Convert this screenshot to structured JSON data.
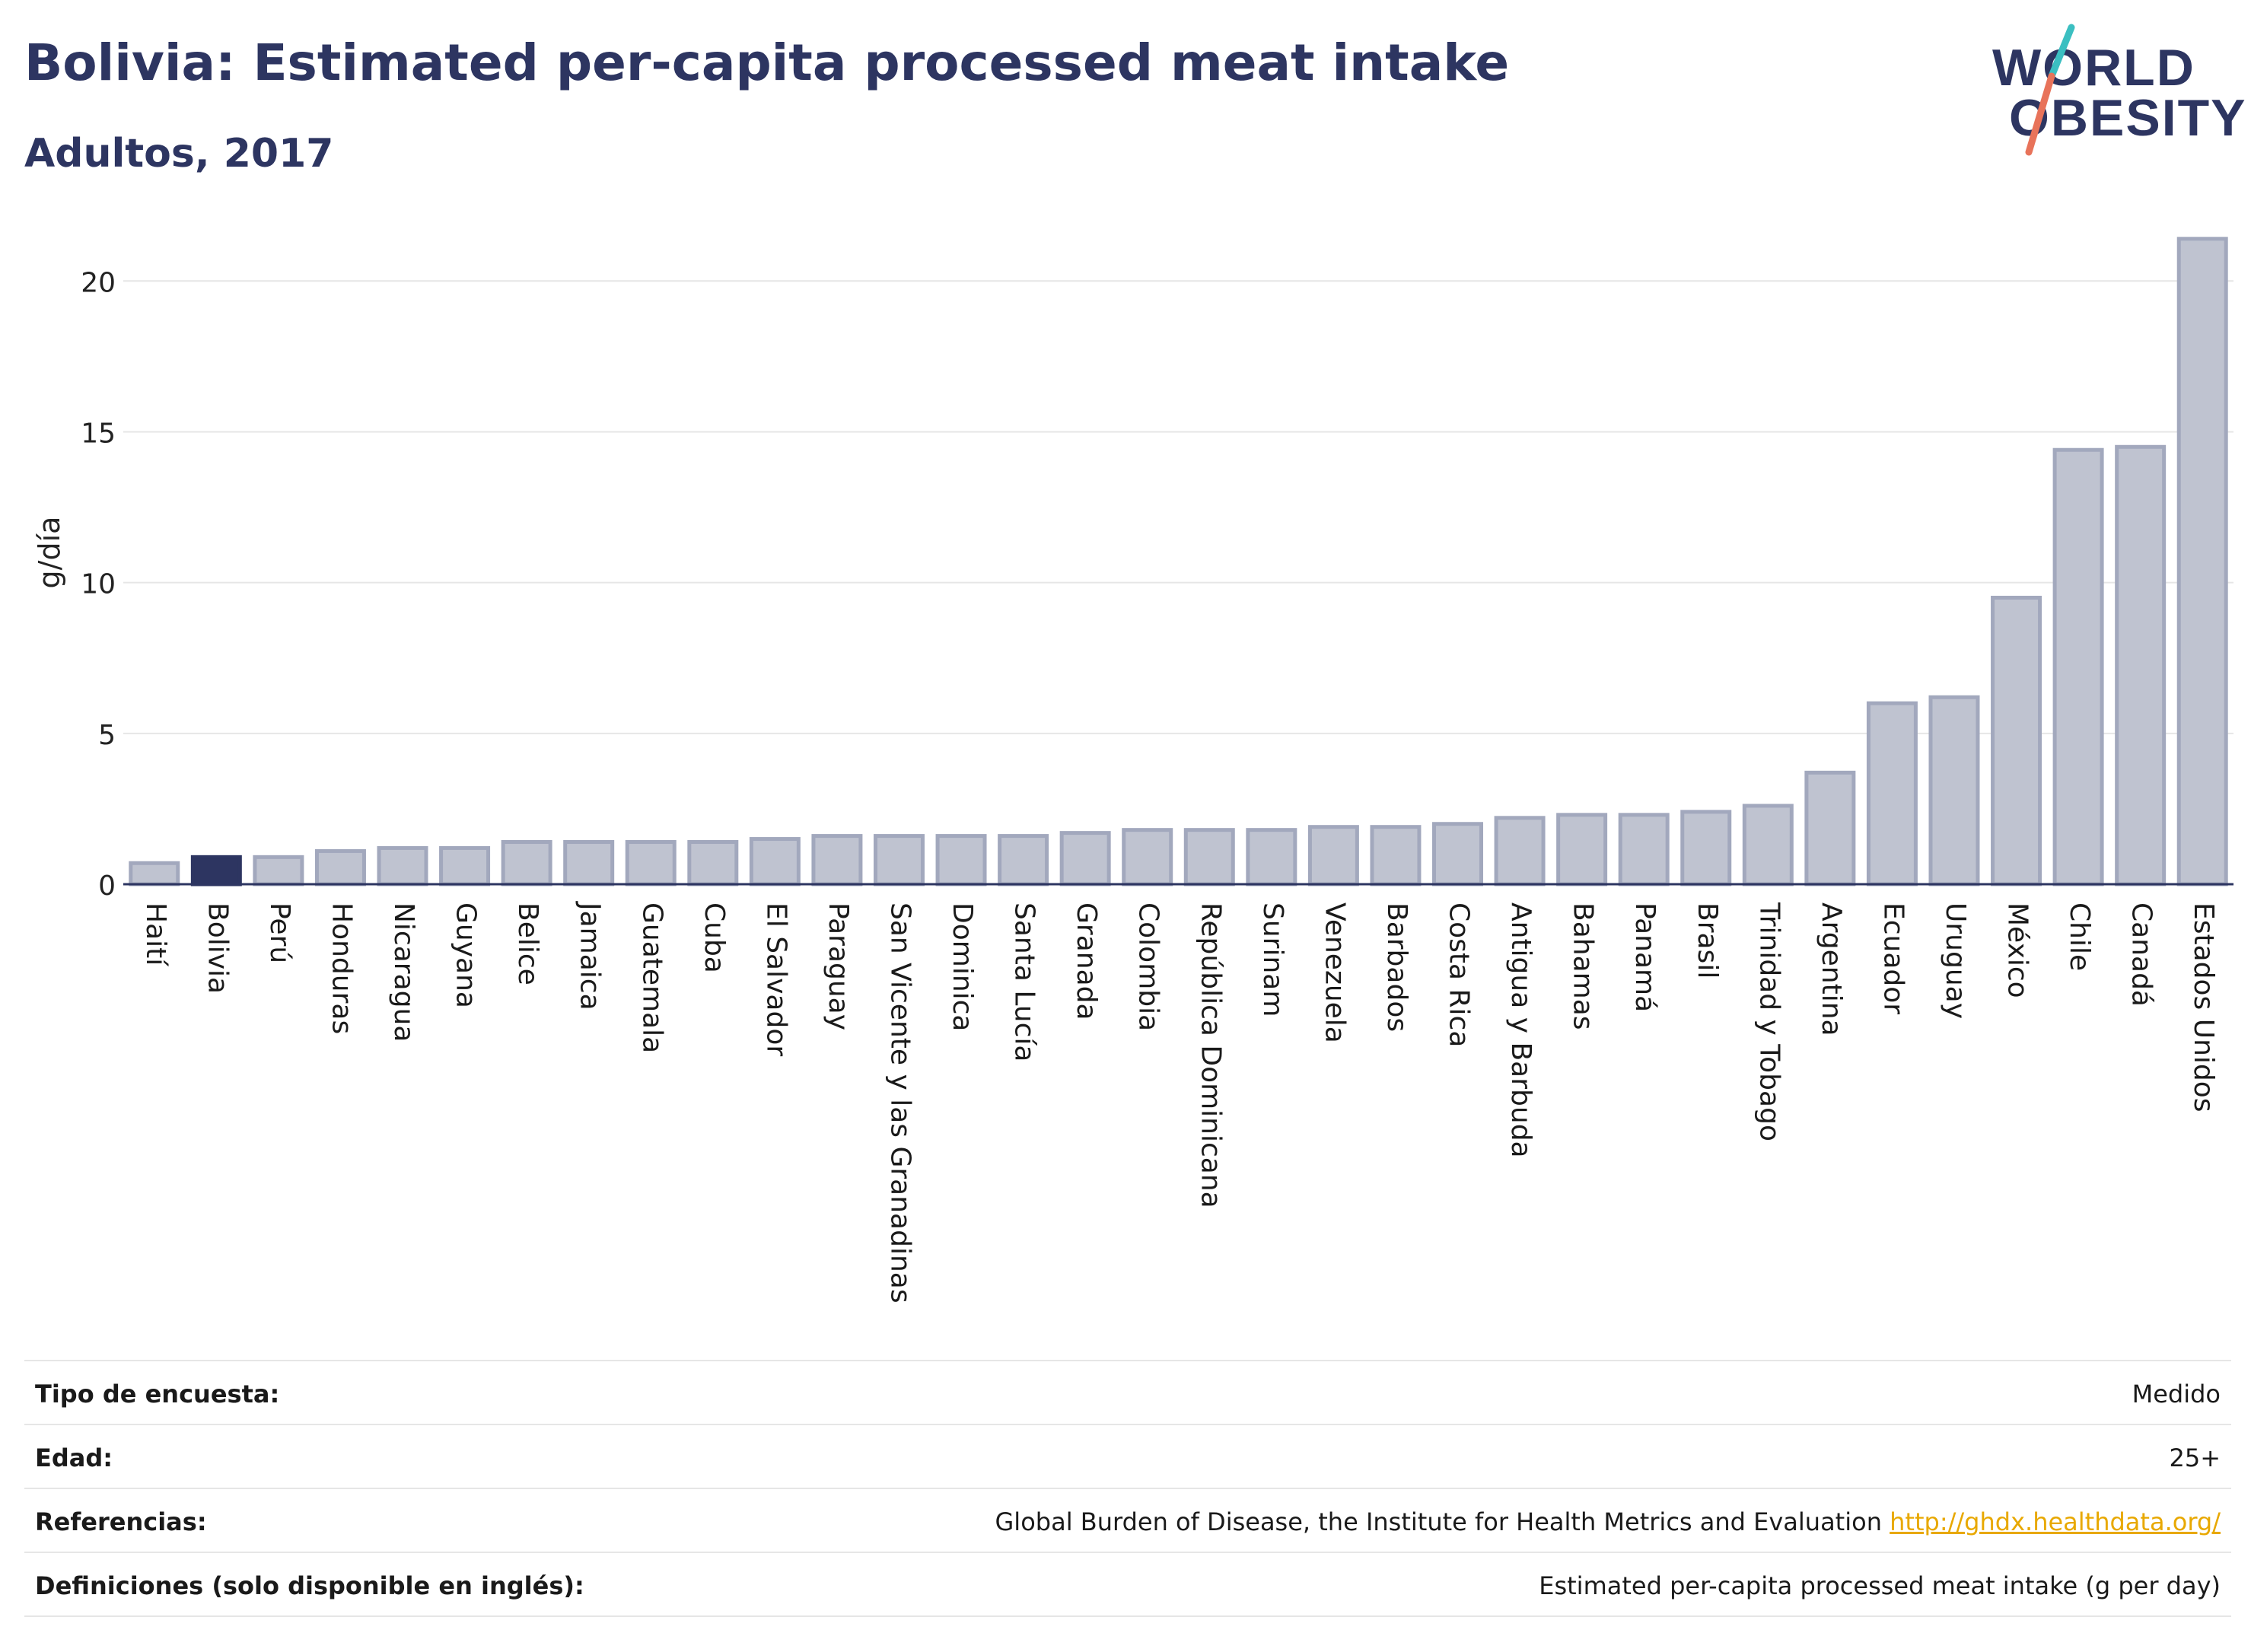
{
  "header": {
    "title": "Bolivia: Estimated per-capita processed meat intake",
    "subtitle": "Adultos, 2017"
  },
  "logo": {
    "line1": "WORLD",
    "line2": "OBESITY",
    "colors": {
      "text": "#2d3561",
      "slash_top": "#3bbfc1",
      "slash_bottom": "#e8735a"
    }
  },
  "chart_data": {
    "type": "bar",
    "ylabel": "g/día",
    "xlabel": "",
    "ylim": [
      0,
      22
    ],
    "yticks": [
      0,
      5,
      10,
      15,
      20
    ],
    "grid": true,
    "highlight": "Bolivia",
    "colors": {
      "bar": "#bfc3d0",
      "bar_edge": "#a2a8bd",
      "highlight": "#2d3561"
    },
    "categories": [
      "Haití",
      "Bolivia",
      "Perú",
      "Honduras",
      "Nicaragua",
      "Guyana",
      "Belice",
      "Jamaica",
      "Guatemala",
      "Cuba",
      "El Salvador",
      "Paraguay",
      "San Vicente y las Granadinas",
      "Dominica",
      "Santa Lucía",
      "Granada",
      "Colombia",
      "República Dominicana",
      "Surinam",
      "Venezuela",
      "Barbados",
      "Costa Rica",
      "Antigua y Barbuda",
      "Bahamas",
      "Panamá",
      "Brasil",
      "Trinidad y Tobago",
      "Argentina",
      "Ecuador",
      "Uruguay",
      "México",
      "Chile",
      "Canadá",
      "Estados Unidos"
    ],
    "values": [
      0.7,
      0.9,
      0.9,
      1.1,
      1.2,
      1.2,
      1.4,
      1.4,
      1.4,
      1.4,
      1.5,
      1.6,
      1.6,
      1.6,
      1.6,
      1.7,
      1.8,
      1.8,
      1.8,
      1.9,
      1.9,
      2.0,
      2.2,
      2.3,
      2.3,
      2.4,
      2.6,
      3.7,
      6.0,
      6.2,
      9.5,
      14.4,
      14.5,
      21.4
    ]
  },
  "meta": [
    {
      "label": "Tipo de encuesta:",
      "value": "Medido"
    },
    {
      "label": "Edad:",
      "value": "25+"
    },
    {
      "label": "Referencias:",
      "value": "Global Burden of Disease, the Institute for Health Metrics and Evaluation",
      "link": "http://ghdx.healthdata.org/"
    },
    {
      "label": "Definiciones (solo disponible en inglés):",
      "value": "Estimated per-capita processed meat intake (g per day)"
    }
  ]
}
